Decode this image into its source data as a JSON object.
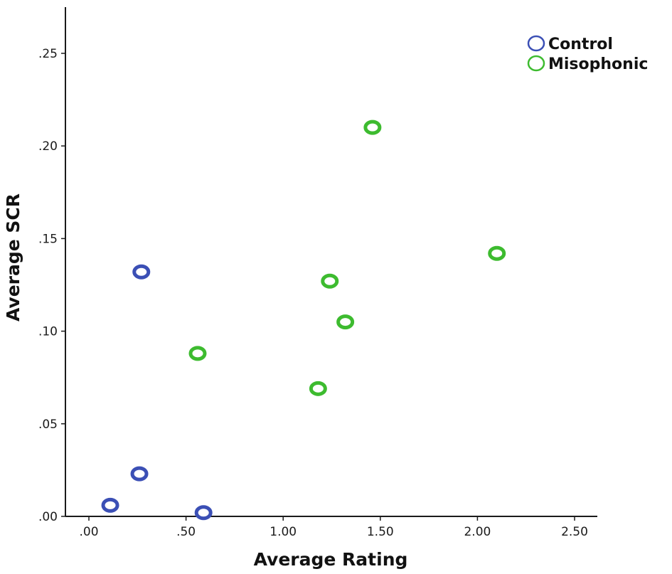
{
  "chart_data": {
    "type": "scatter",
    "title": "",
    "xlabel": "Average Rating",
    "ylabel": "Average SCR",
    "xlim": [
      -0.12,
      2.6
    ],
    "ylim": [
      0.0,
      0.275
    ],
    "x_ticks": [
      0.0,
      0.5,
      1.0,
      1.5,
      2.0,
      2.5
    ],
    "x_tick_labels": [
      ".00",
      ".50",
      "1.00",
      "1.50",
      "2.00",
      "2.50"
    ],
    "y_ticks": [
      0.0,
      0.05,
      0.1,
      0.15,
      0.2,
      0.25
    ],
    "y_tick_labels": [
      ".00",
      ".05",
      ".10",
      ".15",
      ".20",
      ".25"
    ],
    "grid": false,
    "legend_position": "top-right",
    "series": [
      {
        "name": "Control",
        "color": "#3b4fb5",
        "points": [
          {
            "x": 0.27,
            "y": 0.132
          },
          {
            "x": 0.26,
            "y": 0.023
          },
          {
            "x": 0.11,
            "y": 0.006
          },
          {
            "x": 0.59,
            "y": 0.002
          }
        ]
      },
      {
        "name": "Misophonic",
        "color": "#3dbb2f",
        "points": [
          {
            "x": 1.46,
            "y": 0.21
          },
          {
            "x": 2.1,
            "y": 0.142
          },
          {
            "x": 1.24,
            "y": 0.127
          },
          {
            "x": 1.32,
            "y": 0.105
          },
          {
            "x": 0.56,
            "y": 0.088
          },
          {
            "x": 1.18,
            "y": 0.069
          }
        ]
      }
    ]
  }
}
